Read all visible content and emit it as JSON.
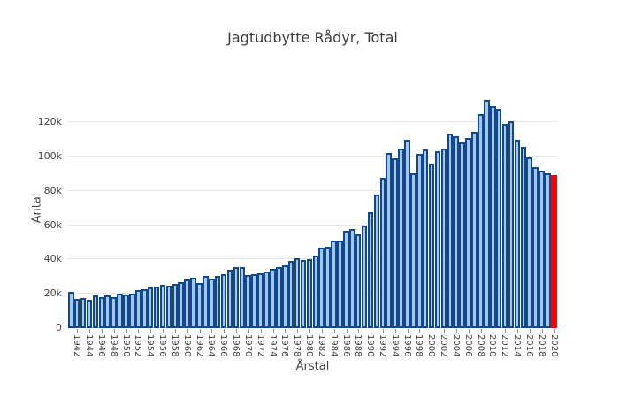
{
  "chart_data": {
    "type": "bar",
    "title": "Jagtudbytte Rådyr, Total",
    "xlabel": "Årstal",
    "ylabel": "Antal",
    "years": [
      1941,
      1942,
      1943,
      1944,
      1945,
      1946,
      1947,
      1948,
      1949,
      1950,
      1951,
      1952,
      1953,
      1954,
      1955,
      1956,
      1957,
      1958,
      1959,
      1960,
      1961,
      1962,
      1963,
      1964,
      1965,
      1966,
      1967,
      1968,
      1969,
      1970,
      1971,
      1972,
      1973,
      1974,
      1975,
      1976,
      1977,
      1978,
      1979,
      1980,
      1981,
      1982,
      1983,
      1984,
      1985,
      1986,
      1987,
      1988,
      1989,
      1990,
      1991,
      1992,
      1993,
      1994,
      1995,
      1996,
      1997,
      1998,
      1999,
      2000,
      2001,
      2002,
      2003,
      2004,
      2005,
      2006,
      2007,
      2008,
      2009,
      2010,
      2011,
      2012,
      2013,
      2014,
      2015,
      2016,
      2017,
      2018,
      2019,
      2020
    ],
    "values": [
      21000,
      16800,
      17600,
      16400,
      19100,
      18300,
      18900,
      18000,
      20000,
      19600,
      19900,
      22000,
      22600,
      23600,
      24200,
      25200,
      24600,
      26000,
      26900,
      28100,
      29300,
      26200,
      30300,
      29100,
      30600,
      31500,
      33900,
      35500,
      35400,
      30800,
      31400,
      31900,
      32900,
      34600,
      35800,
      36700,
      39100,
      40800,
      39800,
      40000,
      42200,
      47000,
      47400,
      51200,
      51200,
      56500,
      57700,
      54800,
      59900,
      67300,
      78000,
      87500,
      102200,
      98700,
      104700,
      109600,
      90100,
      101600,
      103900,
      96100,
      103000,
      104400,
      113300,
      111600,
      108200,
      110800,
      114200,
      124900,
      132800,
      129200,
      128000,
      119000,
      120500,
      110000,
      105600,
      99600,
      94000,
      91500,
      90100,
      89200
    ],
    "highlight_year": 2020,
    "ylim": [
      0,
      135000
    ],
    "ytick_vals": [
      0,
      20000,
      40000,
      60000,
      80000,
      100000,
      120000
    ],
    "ytick_labels": [
      "0",
      "20k",
      "40k",
      "60k",
      "80k",
      "100k",
      "120k"
    ],
    "xtick_every": 2,
    "grid": true,
    "legend": "none",
    "colors": {
      "bar_fill": "#a6c7ea",
      "bar_edge": "#11498f",
      "highlight": "#f80400",
      "grid": "#e8e8e8",
      "axis_text": "#444444",
      "background": "#ffffff"
    }
  }
}
